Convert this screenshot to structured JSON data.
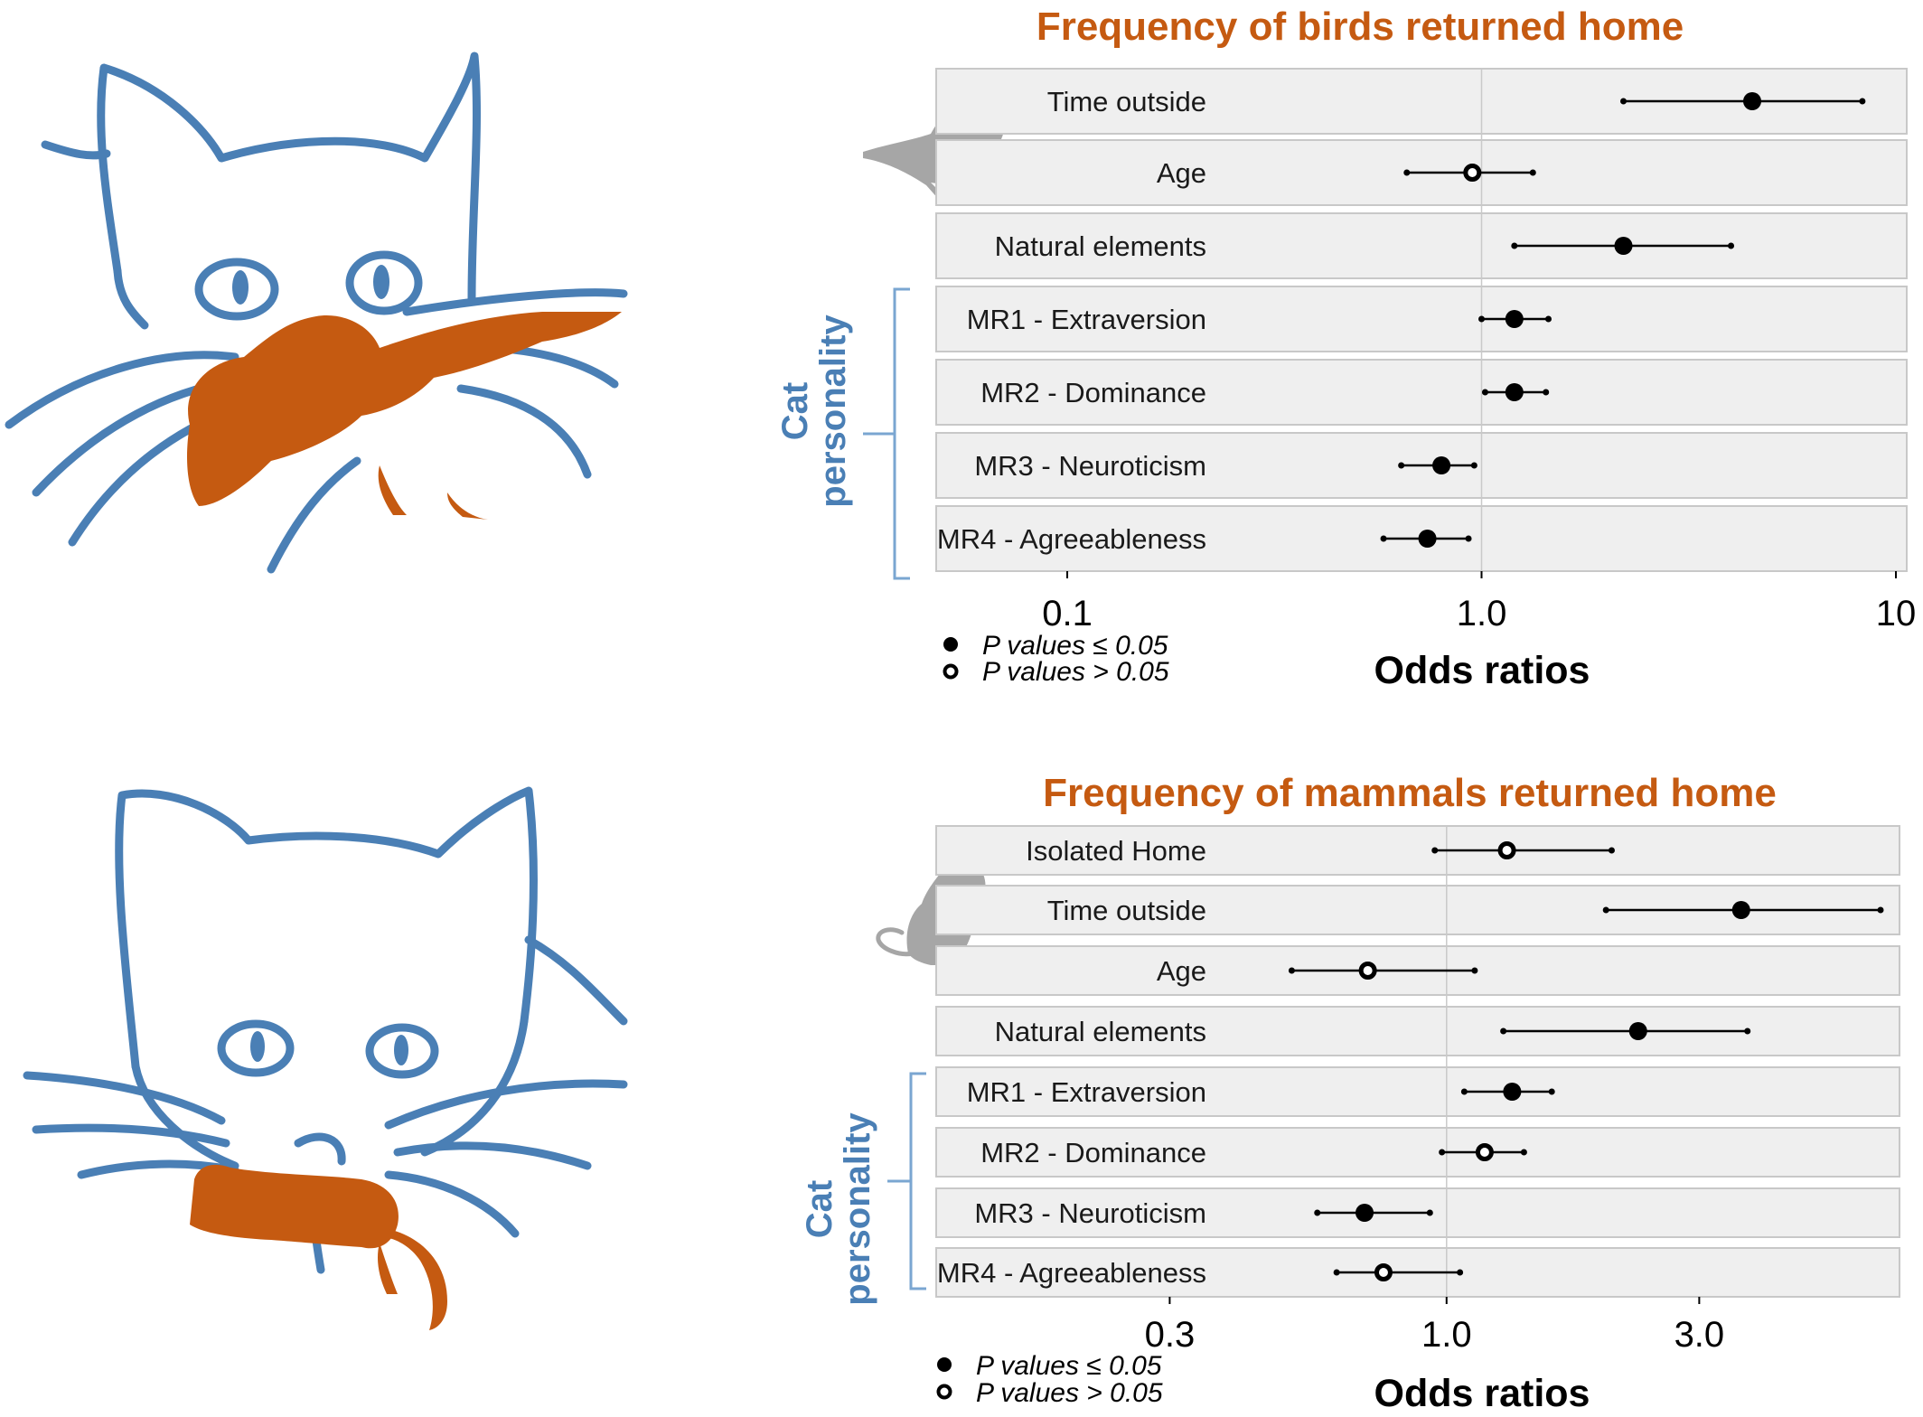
{
  "colors": {
    "title": "#c55a11",
    "cat_outline": "#4a7fb5",
    "prey": "#c55a11",
    "silhouette": "#a6a6a6",
    "panel": "#efefef",
    "marker": "#000000"
  },
  "icons": {
    "cat_bird": "cat-with-bird-illustration",
    "cat_mouse": "cat-with-mouse-illustration",
    "bird_silhouette": "bird-silhouette-icon",
    "mouse_silhouette": "mouse-silhouette-icon"
  },
  "chart_data": [
    {
      "type": "forest",
      "title": "Frequency of birds returned home",
      "xlabel": "Odds ratios",
      "xscale": "log",
      "xlim": [
        0.07,
        10
      ],
      "reference_line": 1.0,
      "xticks": [
        0.1,
        1.0,
        10
      ],
      "xtick_labels": [
        "0.1",
        "1.0",
        "10"
      ],
      "group_label": [
        "Cat",
        "personality"
      ],
      "group_rows": [
        "MR1 - Extraversion",
        "MR2 - Dominance",
        "MR3 - Neuroticism",
        "MR4 - Agreeableness"
      ],
      "legend": {
        "significant": "P values ≤ 0.05",
        "not_significant": "P values > 0.05",
        "placement": "bottom-left"
      },
      "rows": [
        {
          "label": "Time outside",
          "or": 4.5,
          "lo": 2.2,
          "hi": 8.3,
          "significant": true
        },
        {
          "label": "Age",
          "or": 0.95,
          "lo": 0.66,
          "hi": 1.33,
          "significant": false
        },
        {
          "label": "Natural elements",
          "or": 2.2,
          "lo": 1.2,
          "hi": 4.0,
          "significant": true
        },
        {
          "label": "MR1 - Extraversion",
          "or": 1.2,
          "lo": 1.0,
          "hi": 1.45,
          "significant": true
        },
        {
          "label": "MR2 - Dominance",
          "or": 1.2,
          "lo": 1.02,
          "hi": 1.43,
          "significant": true
        },
        {
          "label": "MR3 - Neuroticism",
          "or": 0.8,
          "lo": 0.64,
          "hi": 0.96,
          "significant": true
        },
        {
          "label": "MR4 - Agreeableness",
          "or": 0.74,
          "lo": 0.58,
          "hi": 0.93,
          "significant": true
        }
      ]
    },
    {
      "type": "forest",
      "title": "Frequency of mammals returned home",
      "xlabel": "Odds ratios",
      "xscale": "log",
      "xlim": [
        0.15,
        7
      ],
      "reference_line": 1.0,
      "xticks": [
        0.3,
        1.0,
        3.0
      ],
      "xtick_labels": [
        "0.3",
        "1.0",
        "3.0"
      ],
      "group_label": [
        "Cat",
        "personality"
      ],
      "group_rows": [
        "MR1 - Extraversion",
        "MR2 - Dominance",
        "MR3 - Neuroticism",
        "MR4 - Agreeableness"
      ],
      "legend": {
        "significant": "P values ≤ 0.05",
        "not_significant": "P values > 0.05",
        "placement": "bottom-left"
      },
      "rows": [
        {
          "label": "Isolated Home",
          "or": 1.3,
          "lo": 0.95,
          "hi": 2.05,
          "significant": false
        },
        {
          "label": "Time outside",
          "or": 3.6,
          "lo": 2.0,
          "hi": 6.6,
          "significant": true
        },
        {
          "label": "Age",
          "or": 0.71,
          "lo": 0.51,
          "hi": 1.13,
          "significant": false
        },
        {
          "label": "Natural elements",
          "or": 2.3,
          "lo": 1.28,
          "hi": 3.7,
          "significant": true
        },
        {
          "label": "MR1 - Extraversion",
          "or": 1.33,
          "lo": 1.08,
          "hi": 1.58,
          "significant": true
        },
        {
          "label": "MR2 - Dominance",
          "or": 1.18,
          "lo": 0.98,
          "hi": 1.4,
          "significant": false
        },
        {
          "label": "MR3 - Neuroticism",
          "or": 0.7,
          "lo": 0.57,
          "hi": 0.93,
          "significant": true
        },
        {
          "label": "MR4 - Agreeableness",
          "or": 0.76,
          "lo": 0.62,
          "hi": 1.06,
          "significant": false
        }
      ]
    }
  ]
}
